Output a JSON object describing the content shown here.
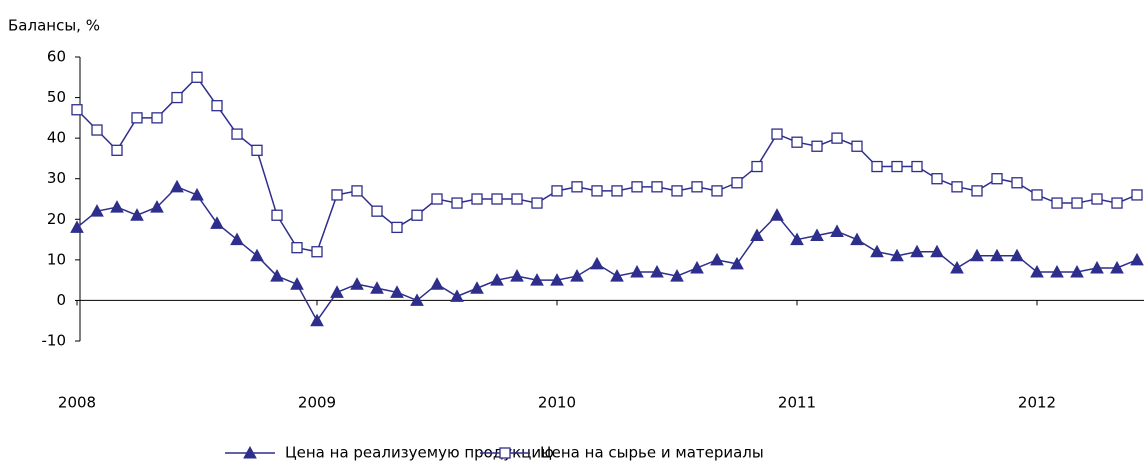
{
  "chart_data": {
    "type": "line",
    "title": "Балансы, %",
    "categories": [
      "2008",
      null,
      null,
      null,
      null,
      null,
      null,
      null,
      null,
      null,
      null,
      null,
      "2009",
      null,
      null,
      null,
      null,
      null,
      null,
      null,
      null,
      null,
      null,
      null,
      "2010",
      null,
      null,
      null,
      null,
      null,
      null,
      null,
      null,
      null,
      null,
      null,
      "2011",
      null,
      null,
      null,
      null,
      null,
      null,
      null,
      null,
      null,
      null,
      null,
      "2012",
      null,
      null,
      null,
      null,
      null
    ],
    "series": [
      {
        "name": "Цена на реализуемую продукцию",
        "color": "#2e2e8c",
        "marker": "triangle",
        "values": [
          18,
          22,
          23,
          21,
          23,
          28,
          26,
          19,
          15,
          11,
          6,
          4,
          -5,
          2,
          4,
          3,
          2,
          0,
          4,
          1,
          3,
          5,
          6,
          5,
          5,
          6,
          9,
          6,
          7,
          7,
          6,
          8,
          10,
          9,
          16,
          21,
          15,
          16,
          17,
          15,
          12,
          11,
          12,
          12,
          8,
          11,
          11,
          11,
          7,
          7,
          7,
          8,
          8,
          10
        ]
      },
      {
        "name": "Цена на сырье и материалы",
        "color": "#2e2e8c",
        "marker": "square",
        "values": [
          47,
          42,
          37,
          45,
          45,
          50,
          55,
          48,
          41,
          37,
          21,
          13,
          12,
          26,
          27,
          22,
          18,
          21,
          25,
          24,
          25,
          25,
          25,
          24,
          27,
          28,
          27,
          27,
          28,
          28,
          27,
          28,
          27,
          29,
          33,
          41,
          39,
          38,
          40,
          38,
          33,
          33,
          33,
          30,
          28,
          27,
          30,
          29,
          26,
          24,
          24,
          25,
          24,
          26
        ]
      }
    ],
    "ylim": [
      -10,
      60
    ],
    "yticks": [
      -10,
      0,
      10,
      20,
      30,
      40,
      50,
      60
    ],
    "grid": false,
    "legend": "bottom"
  }
}
